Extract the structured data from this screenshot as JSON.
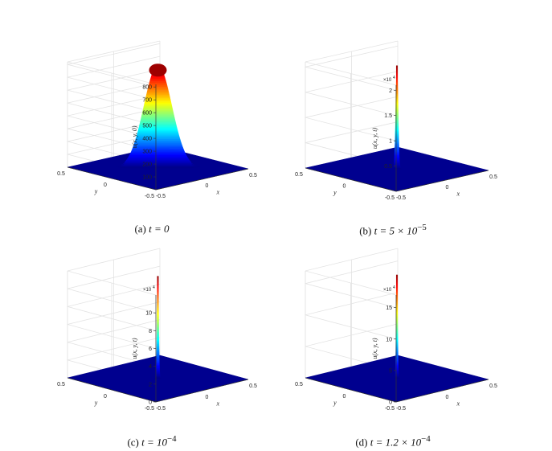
{
  "chart_data": [
    {
      "type": "surface",
      "panel_label": "(a)",
      "caption_math": "t = 0",
      "zlabel": "u(x, y, 0)",
      "xlabel": "x",
      "ylabel": "y",
      "x_ticks": [
        "-0.5",
        "0",
        "0.5"
      ],
      "y_ticks": [
        "-0.5",
        "0",
        "0.5"
      ],
      "z_ticks": [
        "100",
        "200",
        "300",
        "400",
        "500",
        "600",
        "700",
        "800"
      ],
      "z_exponent": "",
      "z_max": 820,
      "peak": 800,
      "width": 0.14,
      "colormap": "jet"
    },
    {
      "type": "surface",
      "panel_label": "(b)",
      "caption_math": "t = 5 × 10",
      "caption_sup": "−5",
      "zlabel": "u(x, y, t)",
      "xlabel": "x",
      "ylabel": "y",
      "x_ticks": [
        "-0.5",
        "0",
        "0.5"
      ],
      "y_ticks": [
        "-0.5",
        "0",
        "0.5"
      ],
      "z_ticks": [
        "0.5",
        "1",
        "1.5",
        "2"
      ],
      "z_exponent": "×10",
      "z_exponent_sup": "4",
      "z_max": 2.1,
      "peak": 2.05,
      "width": 0.012,
      "colormap": "jet"
    },
    {
      "type": "surface",
      "panel_label": "(c)",
      "caption_math": "t = 10",
      "caption_sup": "−4",
      "zlabel": "u(x, y, t)",
      "xlabel": "x",
      "ylabel": "y",
      "x_ticks": [
        "-0.5",
        "0",
        "0.5"
      ],
      "y_ticks": [
        "-0.5",
        "0",
        "0.5"
      ],
      "z_ticks": [
        "0",
        "2",
        "4",
        "6",
        "8",
        "10"
      ],
      "z_exponent": "×10",
      "z_exponent_sup": "4",
      "z_max": 12,
      "peak": 11.5,
      "width": 0.008,
      "colormap": "jet"
    },
    {
      "type": "surface",
      "panel_label": "(d)",
      "caption_math": "t = 1.2 × 10",
      "caption_sup": "−4",
      "zlabel": "u(x, y, t)",
      "xlabel": "x",
      "ylabel": "y",
      "x_ticks": [
        "-0.5",
        "0",
        "0.5"
      ],
      "y_ticks": [
        "-0.5",
        "0",
        "0.5"
      ],
      "z_ticks": [
        "0",
        "5",
        "10",
        "15"
      ],
      "z_exponent": "×10",
      "z_exponent_sup": "4",
      "z_max": 17,
      "peak": 16.5,
      "width": 0.007,
      "colormap": "jet"
    }
  ]
}
